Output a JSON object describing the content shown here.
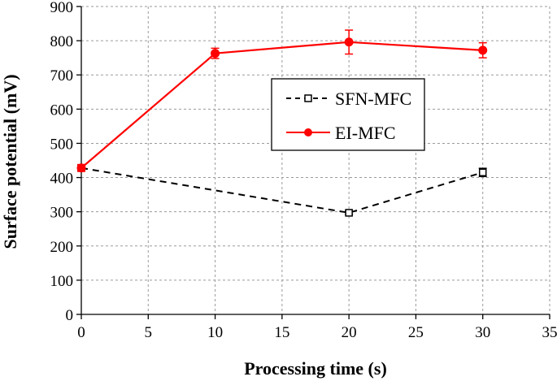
{
  "chart_data": {
    "type": "line",
    "title": "",
    "xlabel": "Processing time (s)",
    "ylabel": "Surface potential (mV)",
    "xlim": [
      0,
      35
    ],
    "ylim": [
      0,
      900
    ],
    "xticks": [
      "0",
      "5",
      "10",
      "15",
      "20",
      "25",
      "30",
      "35"
    ],
    "yticks": [
      "0",
      "100",
      "200",
      "300",
      "400",
      "500",
      "600",
      "700",
      "800",
      "900"
    ],
    "grid": true,
    "legend_position": "center-right",
    "series": [
      {
        "name": "SFN-MFC",
        "color": "#000000",
        "line_style": "dashed",
        "marker": "open-square",
        "x": [
          0,
          20,
          30
        ],
        "y": [
          428,
          297,
          415
        ],
        "error": [
          5,
          5,
          12
        ]
      },
      {
        "name": "EI-MFC",
        "color": "#ff0000",
        "line_style": "solid",
        "marker": "filled-circle",
        "x": [
          0,
          10,
          20,
          30
        ],
        "y": [
          428,
          763,
          796,
          772
        ],
        "error": [
          10,
          15,
          35,
          22
        ]
      }
    ]
  }
}
